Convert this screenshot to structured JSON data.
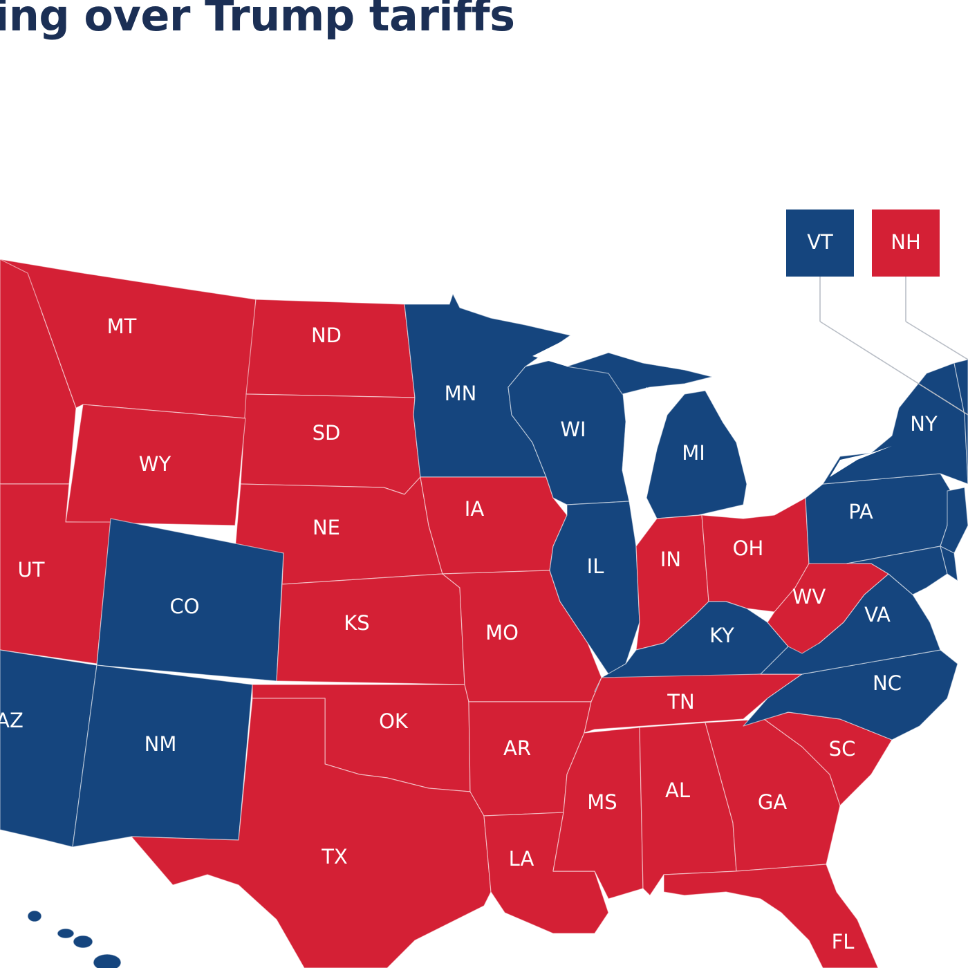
{
  "headline": "ing over Trump tariffs",
  "colors": {
    "blue": "#15457e",
    "red": "#d42035",
    "water": "#ffffff",
    "title": "#1b2f55"
  },
  "states": [
    {
      "id": "MT",
      "label": "MT",
      "party": "red"
    },
    {
      "id": "ND",
      "label": "ND",
      "party": "red"
    },
    {
      "id": "SD",
      "label": "SD",
      "party": "red"
    },
    {
      "id": "WY",
      "label": "WY",
      "party": "red"
    },
    {
      "id": "NE",
      "label": "NE",
      "party": "red"
    },
    {
      "id": "UT",
      "label": "UT",
      "party": "red"
    },
    {
      "id": "CO",
      "label": "CO",
      "party": "blue"
    },
    {
      "id": "KS",
      "label": "KS",
      "party": "red"
    },
    {
      "id": "AZ",
      "label": "AZ",
      "party": "blue"
    },
    {
      "id": "NM",
      "label": "NM",
      "party": "blue"
    },
    {
      "id": "OK",
      "label": "OK",
      "party": "red"
    },
    {
      "id": "TX",
      "label": "TX",
      "party": "red"
    },
    {
      "id": "MN",
      "label": "MN",
      "party": "blue"
    },
    {
      "id": "IA",
      "label": "IA",
      "party": "red"
    },
    {
      "id": "MO",
      "label": "MO",
      "party": "red"
    },
    {
      "id": "AR",
      "label": "AR",
      "party": "red"
    },
    {
      "id": "LA",
      "label": "LA",
      "party": "red"
    },
    {
      "id": "WI",
      "label": "WI",
      "party": "blue"
    },
    {
      "id": "IL",
      "label": "IL",
      "party": "blue"
    },
    {
      "id": "MI",
      "label": "MI",
      "party": "blue"
    },
    {
      "id": "IN",
      "label": "IN",
      "party": "red"
    },
    {
      "id": "OH",
      "label": "OH",
      "party": "red"
    },
    {
      "id": "KY",
      "label": "KY",
      "party": "blue"
    },
    {
      "id": "TN",
      "label": "TN",
      "party": "red"
    },
    {
      "id": "MS",
      "label": "MS",
      "party": "red"
    },
    {
      "id": "AL",
      "label": "AL",
      "party": "red"
    },
    {
      "id": "GA",
      "label": "GA",
      "party": "red"
    },
    {
      "id": "FL",
      "label": "FL",
      "party": "red"
    },
    {
      "id": "SC",
      "label": "SC",
      "party": "red"
    },
    {
      "id": "NC",
      "label": "NC",
      "party": "blue"
    },
    {
      "id": "VA",
      "label": "VA",
      "party": "blue"
    },
    {
      "id": "WV",
      "label": "WV",
      "party": "red"
    },
    {
      "id": "PA",
      "label": "PA",
      "party": "blue"
    },
    {
      "id": "NY",
      "label": "NY",
      "party": "blue"
    },
    {
      "id": "ID",
      "label": "",
      "party": "red"
    },
    {
      "id": "NJ",
      "label": "",
      "party": "blue"
    },
    {
      "id": "MD",
      "label": "",
      "party": "blue"
    },
    {
      "id": "DE",
      "label": "",
      "party": "blue"
    },
    {
      "id": "New_England",
      "label": "",
      "party": "blue"
    },
    {
      "id": "HI",
      "label": "",
      "party": "blue"
    }
  ],
  "callouts": [
    {
      "id": "VT",
      "label": "VT",
      "party": "blue"
    },
    {
      "id": "NH",
      "label": "NH",
      "party": "red"
    }
  ]
}
